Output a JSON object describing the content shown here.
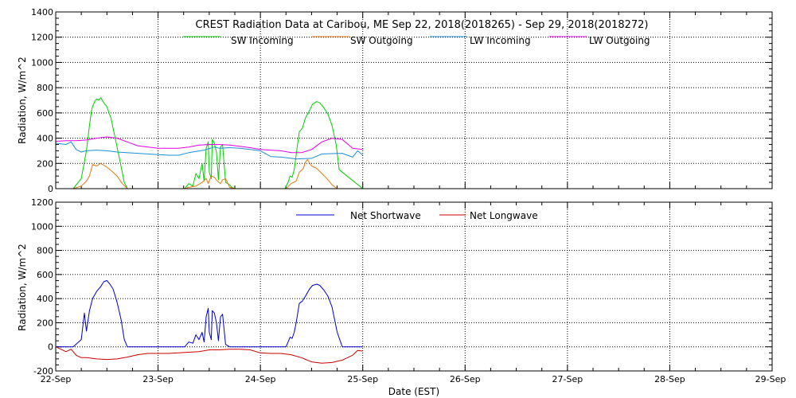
{
  "title": "CREST Radiation Data at Caribou, ME   Sep 22, 2018(2018265) - Sep 29, 2018(2018272)",
  "xlabel": "Date (EST)",
  "x_ticks": [
    "22-Sep",
    "23-Sep",
    "24-Sep",
    "25-Sep",
    "26-Sep",
    "27-Sep",
    "28-Sep",
    "29-Sep"
  ],
  "chart_data": [
    {
      "type": "line",
      "ylabel": "Radiation,  W/m^2",
      "xlim": [
        0,
        7
      ],
      "ylim": [
        0,
        1400
      ],
      "yticks": [
        0,
        200,
        400,
        600,
        800,
        1000,
        1200,
        1400
      ],
      "grid": true,
      "legend_position": "top",
      "series": [
        {
          "name": "SW Incoming",
          "color": "#00cc00",
          "x": [
            0.0,
            0.17,
            0.25,
            0.3,
            0.33,
            0.35,
            0.36,
            0.38,
            0.4,
            0.42,
            0.44,
            0.47,
            0.5,
            0.52,
            0.54,
            0.56,
            0.6,
            0.64,
            0.67,
            0.7,
            0.73,
            0.75,
            1.0,
            1.26,
            1.3,
            1.34,
            1.37,
            1.4,
            1.43,
            1.45,
            1.47,
            1.49,
            1.5,
            1.52,
            1.53,
            1.55,
            1.57,
            1.59,
            1.61,
            1.63,
            1.66,
            1.7,
            1.72,
            1.75,
            2.0,
            2.24,
            2.27,
            2.29,
            2.31,
            2.33,
            2.35,
            2.38,
            2.41,
            2.44,
            2.48,
            2.51,
            2.55,
            2.58,
            2.62,
            2.66,
            2.7,
            2.74,
            2.77,
            3.0
          ],
          "y": [
            0,
            0,
            80,
            300,
            500,
            620,
            650,
            690,
            710,
            700,
            720,
            680,
            650,
            600,
            560,
            480,
            330,
            170,
            50,
            0,
            0,
            0,
            0,
            0,
            40,
            20,
            120,
            80,
            200,
            60,
            320,
            370,
            130,
            80,
            390,
            360,
            290,
            70,
            330,
            350,
            50,
            30,
            10,
            0,
            0,
            0,
            50,
            100,
            90,
            150,
            270,
            450,
            480,
            560,
            620,
            670,
            690,
            680,
            640,
            590,
            500,
            350,
            150,
            0
          ]
        },
        {
          "name": "SW Outgoing",
          "color": "#e07a10",
          "x": [
            0.0,
            0.17,
            0.25,
            0.3,
            0.33,
            0.36,
            0.4,
            0.44,
            0.5,
            0.56,
            0.6,
            0.65,
            0.7,
            1.0,
            1.26,
            1.3,
            1.37,
            1.43,
            1.47,
            1.49,
            1.52,
            1.55,
            1.58,
            1.61,
            1.63,
            1.66,
            1.7,
            1.75,
            2.0,
            2.25,
            2.3,
            2.35,
            2.38,
            2.42,
            2.44,
            2.46,
            2.5,
            2.55,
            2.6,
            2.65,
            2.7,
            2.75,
            3.0
          ],
          "y": [
            0,
            0,
            20,
            60,
            100,
            190,
            180,
            200,
            170,
            130,
            100,
            40,
            0,
            0,
            0,
            10,
            20,
            50,
            80,
            40,
            100,
            90,
            60,
            40,
            70,
            80,
            10,
            0,
            0,
            0,
            40,
            60,
            130,
            160,
            210,
            230,
            180,
            160,
            120,
            80,
            30,
            0,
            0
          ]
        },
        {
          "name": "LW Incoming",
          "color": "#1a8fd6",
          "x": [
            0.0,
            0.1,
            0.15,
            0.2,
            0.25,
            0.3,
            0.4,
            0.5,
            0.6,
            0.8,
            1.0,
            1.1,
            1.2,
            1.3,
            1.45,
            1.55,
            1.6,
            1.7,
            1.8,
            2.0,
            2.1,
            2.2,
            2.3,
            2.35,
            2.5,
            2.6,
            2.8,
            2.9,
            2.95,
            2.98,
            3.0
          ],
          "y": [
            360,
            350,
            370,
            310,
            290,
            300,
            305,
            300,
            290,
            280,
            270,
            265,
            265,
            285,
            305,
            330,
            320,
            325,
            320,
            300,
            255,
            250,
            240,
            235,
            240,
            275,
            280,
            250,
            300,
            280,
            265
          ]
        },
        {
          "name": "LW Outgoing",
          "color": "#e600e6",
          "x": [
            0.0,
            0.1,
            0.2,
            0.3,
            0.4,
            0.5,
            0.6,
            0.7,
            0.8,
            1.0,
            1.2,
            1.3,
            1.4,
            1.5,
            1.6,
            1.7,
            1.8,
            1.9,
            2.0,
            2.1,
            2.2,
            2.3,
            2.4,
            2.5,
            2.6,
            2.7,
            2.8,
            2.9,
            3.0
          ],
          "y": [
            375,
            380,
            380,
            385,
            400,
            410,
            400,
            370,
            340,
            320,
            320,
            330,
            345,
            350,
            350,
            345,
            335,
            325,
            310,
            305,
            300,
            285,
            285,
            310,
            370,
            400,
            390,
            320,
            310
          ]
        }
      ]
    },
    {
      "type": "line",
      "ylabel": "Radiation,  W/m^2",
      "xlim": [
        0,
        7
      ],
      "ylim": [
        -200,
        1200
      ],
      "yticks": [
        -200,
        0,
        200,
        400,
        600,
        800,
        1000,
        1200
      ],
      "grid": true,
      "legend_position": "top",
      "series": [
        {
          "name": "Net Shortwave",
          "color": "#0000cc",
          "x": [
            0.0,
            0.17,
            0.25,
            0.28,
            0.3,
            0.33,
            0.36,
            0.4,
            0.44,
            0.47,
            0.5,
            0.53,
            0.56,
            0.6,
            0.64,
            0.67,
            0.7,
            1.0,
            1.26,
            1.3,
            1.34,
            1.37,
            1.4,
            1.43,
            1.45,
            1.47,
            1.49,
            1.5,
            1.52,
            1.53,
            1.55,
            1.57,
            1.59,
            1.61,
            1.63,
            1.66,
            1.7,
            1.75,
            2.0,
            2.25,
            2.27,
            2.29,
            2.31,
            2.33,
            2.35,
            2.38,
            2.41,
            2.44,
            2.48,
            2.51,
            2.55,
            2.58,
            2.62,
            2.66,
            2.7,
            2.75,
            2.8,
            2.9,
            3.0
          ],
          "y": [
            0,
            0,
            60,
            280,
            130,
            300,
            400,
            460,
            500,
            540,
            550,
            520,
            480,
            370,
            220,
            60,
            0,
            0,
            0,
            40,
            30,
            100,
            60,
            120,
            40,
            250,
            320,
            120,
            60,
            300,
            280,
            200,
            50,
            250,
            270,
            20,
            0,
            0,
            0,
            0,
            40,
            80,
            70,
            120,
            200,
            360,
            380,
            420,
            480,
            510,
            520,
            510,
            470,
            420,
            330,
            120,
            0,
            0,
            0
          ]
        },
        {
          "name": "Net Longwave",
          "color": "#cc0000",
          "x": [
            0.0,
            0.05,
            0.1,
            0.15,
            0.2,
            0.25,
            0.3,
            0.4,
            0.5,
            0.6,
            0.7,
            0.8,
            0.9,
            1.0,
            1.1,
            1.2,
            1.3,
            1.4,
            1.5,
            1.6,
            1.7,
            1.8,
            1.9,
            2.0,
            2.1,
            2.2,
            2.3,
            2.4,
            2.5,
            2.6,
            2.7,
            2.8,
            2.9,
            2.95,
            3.0
          ],
          "y": [
            0,
            -20,
            -40,
            -20,
            -70,
            -90,
            -90,
            -100,
            -105,
            -100,
            -85,
            -65,
            -55,
            -55,
            -55,
            -50,
            -45,
            -40,
            -25,
            -25,
            -20,
            -20,
            -25,
            -50,
            -55,
            -55,
            -65,
            -90,
            -125,
            -135,
            -130,
            -110,
            -70,
            -30,
            -35
          ]
        }
      ]
    }
  ]
}
